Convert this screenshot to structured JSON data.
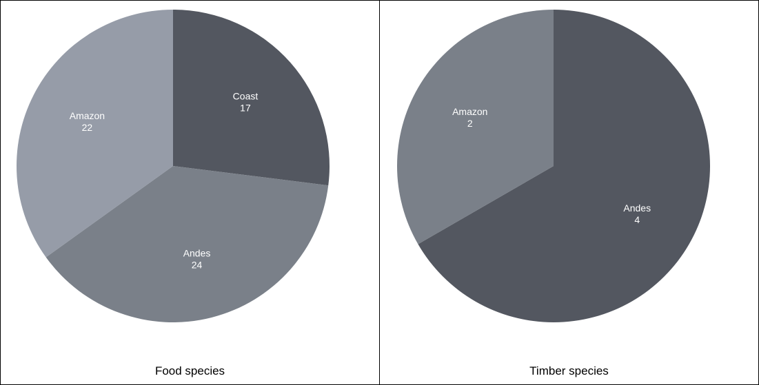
{
  "chart_data": [
    {
      "type": "pie",
      "title": "Food species",
      "slices": [
        {
          "label": "Coast",
          "value": 17,
          "color": "#535760"
        },
        {
          "label": "Andes",
          "value": 24,
          "color": "#7a8089"
        },
        {
          "label": "Amazon",
          "value": 22,
          "color": "#969ca8"
        }
      ],
      "start_angle_deg": 0,
      "direction": "clockwise"
    },
    {
      "type": "pie",
      "title": "Timber species",
      "slices": [
        {
          "label": "Andes",
          "value": 4,
          "color": "#535760"
        },
        {
          "label": "Amazon",
          "value": 2,
          "color": "#7a8089"
        }
      ],
      "start_angle_deg": 0,
      "direction": "clockwise"
    }
  ]
}
